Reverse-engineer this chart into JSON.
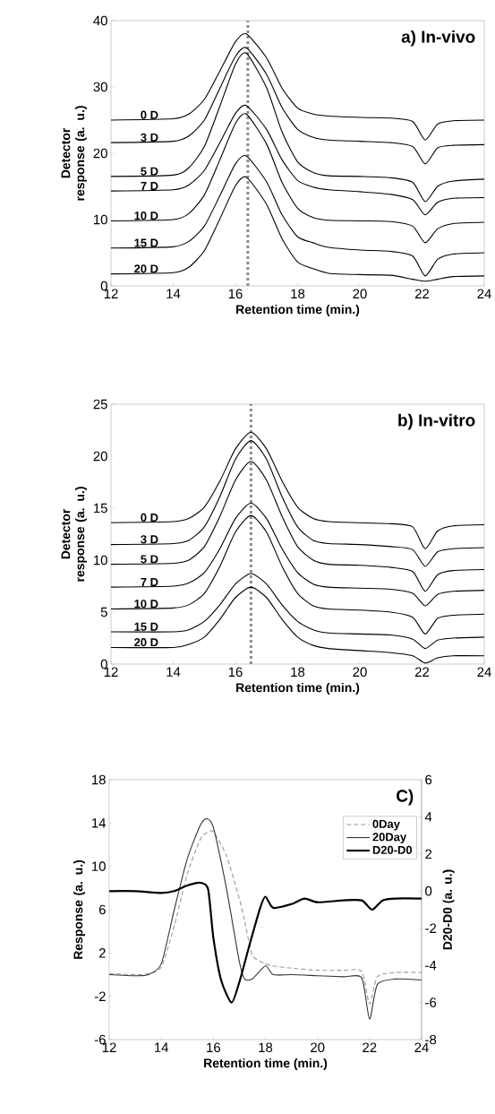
{
  "chart_data": [
    {
      "type": "line",
      "title": "a) In-vivo",
      "xlabel": "Retention time (min.)",
      "ylabel": "Detector response (a. u.)",
      "x": [
        12,
        14,
        14.5,
        15,
        15.5,
        16,
        16.35,
        17,
        17.5,
        18,
        18.5,
        19,
        20,
        21,
        21.7,
        22.1,
        22.5,
        23,
        24
      ],
      "xlim": [
        12,
        24
      ],
      "xticks": [
        12,
        14,
        16,
        18,
        20,
        22,
        24
      ],
      "ylim": [
        0,
        40
      ],
      "yticks": [
        0,
        10,
        20,
        30,
        40
      ],
      "ref_lines": [
        {
          "axis": "x",
          "value": 16.4,
          "color": "#8c8c8c",
          "line_style": "dotted"
        }
      ],
      "series": [
        {
          "name": "0 D",
          "color": "#000000",
          "values": [
            25,
            25.2,
            25.9,
            28.1,
            32.4,
            36.8,
            38,
            34.4,
            29.8,
            26.8,
            25.9,
            25.6,
            25.4,
            25.3,
            24.8,
            22.0,
            24.4,
            24.9,
            25.0
          ]
        },
        {
          "name": "3 D",
          "color": "#000000",
          "values": [
            21.6,
            21.8,
            22.6,
            25.0,
            29.8,
            34.6,
            35.9,
            31.9,
            26.9,
            23.6,
            22.4,
            22.0,
            21.8,
            21.6,
            21.0,
            18.4,
            20.8,
            21.2,
            21.3
          ]
        },
        {
          "name": "5 D",
          "color": "#000000",
          "values": [
            16.5,
            16.7,
            17.8,
            21.0,
            27.1,
            33.4,
            35.1,
            29.9,
            23.2,
            18.7,
            17.1,
            16.6,
            16.5,
            16.3,
            15.6,
            12.7,
            15.0,
            15.8,
            16.1
          ]
        },
        {
          "name": "7 D",
          "color": "#000000",
          "values": [
            14.3,
            14.5,
            15.2,
            17.4,
            21.6,
            26.0,
            27.2,
            23.6,
            19.0,
            15.9,
            14.9,
            14.5,
            14.2,
            13.8,
            13.0,
            10.7,
            12.6,
            13.2,
            13.3
          ]
        },
        {
          "name": "10 D",
          "color": "#000000",
          "values": [
            9.8,
            10.0,
            10.9,
            13.7,
            19.0,
            24.5,
            25.9,
            21.4,
            15.6,
            11.7,
            10.3,
            9.9,
            9.8,
            9.7,
            9.0,
            6.5,
            8.6,
            9.4,
            9.6
          ]
        },
        {
          "name": "15 D",
          "color": "#000000",
          "values": [
            5.7,
            5.9,
            6.7,
            9.0,
            13.6,
            18.4,
            19.6,
            15.7,
            10.7,
            7.4,
            6.5,
            5.8,
            5.4,
            5.2,
            4.5,
            1.5,
            4.0,
            4.8,
            5.0
          ]
        },
        {
          "name": "20 D",
          "color": "#000000",
          "values": [
            1.8,
            2.0,
            2.8,
            5.3,
            10.1,
            15.1,
            16.4,
            12.3,
            7.1,
            3.6,
            2.6,
            1.9,
            1.7,
            1.6,
            1.0,
            0.7,
            1.0,
            1.4,
            1.5
          ]
        }
      ]
    },
    {
      "type": "line",
      "title": "b) In-vitro",
      "xlabel": "Retention time (min.)",
      "ylabel": "Detector response (a. u.)",
      "x": [
        12,
        14,
        14.5,
        15,
        15.5,
        16,
        16.5,
        17,
        17.5,
        18,
        18.5,
        19,
        20,
        21,
        21.7,
        22.1,
        22.5,
        23,
        24
      ],
      "xlim": [
        12,
        24
      ],
      "xticks": [
        12,
        14,
        16,
        18,
        20,
        22,
        24
      ],
      "ylim": [
        0,
        25
      ],
      "yticks": [
        0,
        5,
        10,
        15,
        20,
        25
      ],
      "ref_lines": [
        {
          "axis": "x",
          "value": 16.5,
          "color": "#8c8c8c",
          "line_style": "dotted"
        }
      ],
      "series": [
        {
          "name": "0 D",
          "color": "#000000",
          "values": [
            13.6,
            13.7,
            14.0,
            15.1,
            17.6,
            20.7,
            22.3,
            20.7,
            17.6,
            15.1,
            14.0,
            13.7,
            13.6,
            13.5,
            13.2,
            11.1,
            12.8,
            13.3,
            13.4
          ]
        },
        {
          "name": "3 D",
          "color": "#000000",
          "values": [
            11.5,
            11.6,
            11.9,
            13.2,
            16.1,
            19.7,
            21.5,
            19.7,
            16.1,
            13.2,
            11.9,
            11.6,
            11.5,
            11.3,
            11.0,
            9.4,
            10.8,
            11.1,
            11.2
          ]
        },
        {
          "name": "5 D",
          "color": "#000000",
          "values": [
            9.6,
            9.7,
            10.0,
            11.3,
            14.2,
            17.7,
            19.5,
            17.7,
            14.2,
            11.3,
            10.0,
            9.6,
            9.5,
            9.3,
            8.9,
            7.0,
            8.6,
            9.0,
            9.1
          ]
        },
        {
          "name": "7 D",
          "color": "#000000",
          "values": [
            7.4,
            7.5,
            7.8,
            8.8,
            11.1,
            14.0,
            15.5,
            14.0,
            11.1,
            8.8,
            7.7,
            7.4,
            7.3,
            7.2,
            6.8,
            5.6,
            6.7,
            7.0,
            7.1
          ]
        },
        {
          "name": "10 D",
          "color": "#000000",
          "values": [
            5.3,
            5.4,
            5.7,
            6.8,
            9.4,
            12.7,
            14.3,
            12.7,
            9.4,
            6.8,
            5.6,
            5.3,
            5.2,
            5.0,
            4.5,
            2.9,
            4.4,
            4.7,
            4.8
          ]
        },
        {
          "name": "15 D",
          "color": "#000000",
          "values": [
            3.1,
            3.1,
            3.3,
            4.1,
            5.7,
            7.7,
            8.7,
            7.7,
            5.7,
            4.1,
            3.3,
            3.0,
            2.9,
            2.8,
            2.4,
            1.5,
            2.3,
            2.5,
            2.6
          ]
        },
        {
          "name": "20 D",
          "color": "#000000",
          "values": [
            1.6,
            1.6,
            1.9,
            2.6,
            4.3,
            6.4,
            7.4,
            6.4,
            4.3,
            2.6,
            1.8,
            1.5,
            1.3,
            1.1,
            0.8,
            0.1,
            0.6,
            0.8,
            0.8
          ]
        }
      ]
    },
    {
      "type": "line",
      "title": "C)",
      "xlabel": "Retention time (min.)",
      "ylabel": "Response (a. u.)",
      "y2label": "D20-D0 (a. u.)",
      "x": [
        12,
        13,
        13.5,
        14,
        14.5,
        15,
        15.5,
        15.75,
        16,
        16.5,
        17,
        17.2,
        17.5,
        18,
        18.3,
        19,
        20,
        21,
        21.7,
        22,
        22.3,
        23,
        24
      ],
      "xlim": [
        12,
        24
      ],
      "xticks": [
        12,
        14,
        16,
        18,
        20,
        22,
        24
      ],
      "ylim": [
        -6,
        18
      ],
      "yticks": [
        -6,
        -2,
        2,
        6,
        10,
        14,
        18
      ],
      "y2lim": [
        -8,
        6
      ],
      "y2ticks": [
        -8,
        -6,
        -4,
        -2,
        0,
        2,
        4,
        6
      ],
      "legend": "top right",
      "series": [
        {
          "name": "0Day",
          "color": "#999999",
          "line_style": "dashed",
          "values": [
            0.1,
            0.0,
            0.1,
            0.7,
            4.5,
            9.3,
            12.5,
            13.1,
            13.2,
            11.0,
            7.0,
            5.0,
            1.8,
            1.0,
            0.8,
            0.6,
            0.4,
            0.4,
            0.3,
            -2.7,
            -0.2,
            0.2,
            0.2
          ]
        },
        {
          "name": "20Day",
          "color": "#333333",
          "values": [
            0.0,
            -0.1,
            0.0,
            1.0,
            6.0,
            10.7,
            13.8,
            14.4,
            13.6,
            8.0,
            1.2,
            -0.4,
            -0.4,
            0.8,
            0.0,
            0.0,
            -0.1,
            -0.2,
            -0.3,
            -4.1,
            -0.9,
            -0.4,
            -0.5
          ]
        },
        {
          "name": "D20-D0",
          "color": "#000000",
          "axis": "y2",
          "x": [
            12,
            13,
            14,
            14.5,
            15,
            15.5,
            15.8,
            16,
            16.3,
            16.7,
            17,
            17.4,
            17.8,
            18,
            18.3,
            19,
            19.5,
            20,
            21,
            21.7,
            22.1,
            22.5,
            23,
            24
          ],
          "values": [
            0.0,
            0.0,
            -0.1,
            0.0,
            0.3,
            0.45,
            0.1,
            -2.5,
            -4.8,
            -6.0,
            -4.9,
            -2.85,
            -0.9,
            -0.3,
            -0.9,
            -0.7,
            -0.4,
            -0.6,
            -0.5,
            -0.5,
            -1.0,
            -0.5,
            -0.4,
            -0.4
          ]
        }
      ]
    }
  ]
}
